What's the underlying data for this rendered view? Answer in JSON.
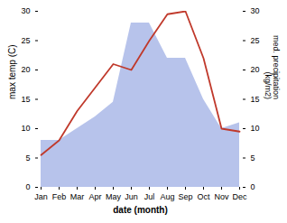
{
  "chart_data": {
    "type": "line",
    "categories": [
      "Jan",
      "Feb",
      "Mar",
      "Apr",
      "May",
      "Jun",
      "Jul",
      "Aug",
      "Sep",
      "Oct",
      "Nov",
      "Dec"
    ],
    "series": [
      {
        "type": "area",
        "color": "#aab8e8",
        "axis": "y2",
        "values": [
          8.0,
          8.0,
          10.0,
          12.0,
          14.5,
          28.0,
          28.0,
          22.0,
          22.0,
          15.0,
          10.0,
          11.0
        ]
      },
      {
        "type": "line",
        "color": "#c0392b",
        "values": [
          5.5,
          8.0,
          13.0,
          17.0,
          21.0,
          20.0,
          25.0,
          29.5,
          30.0,
          22.0,
          10.0,
          9.5
        ]
      }
    ],
    "xlabel": "date (month)",
    "ylabel": "max temp (C)",
    "y2label": "med. precipitation\n(kg/m2)",
    "ylim": [
      0,
      30
    ],
    "yticks": [
      0,
      5,
      10,
      15,
      20,
      25,
      30
    ],
    "y2lim": [
      0,
      30
    ],
    "y2ticks": [
      0,
      5,
      10,
      15,
      20,
      25,
      30
    ]
  }
}
